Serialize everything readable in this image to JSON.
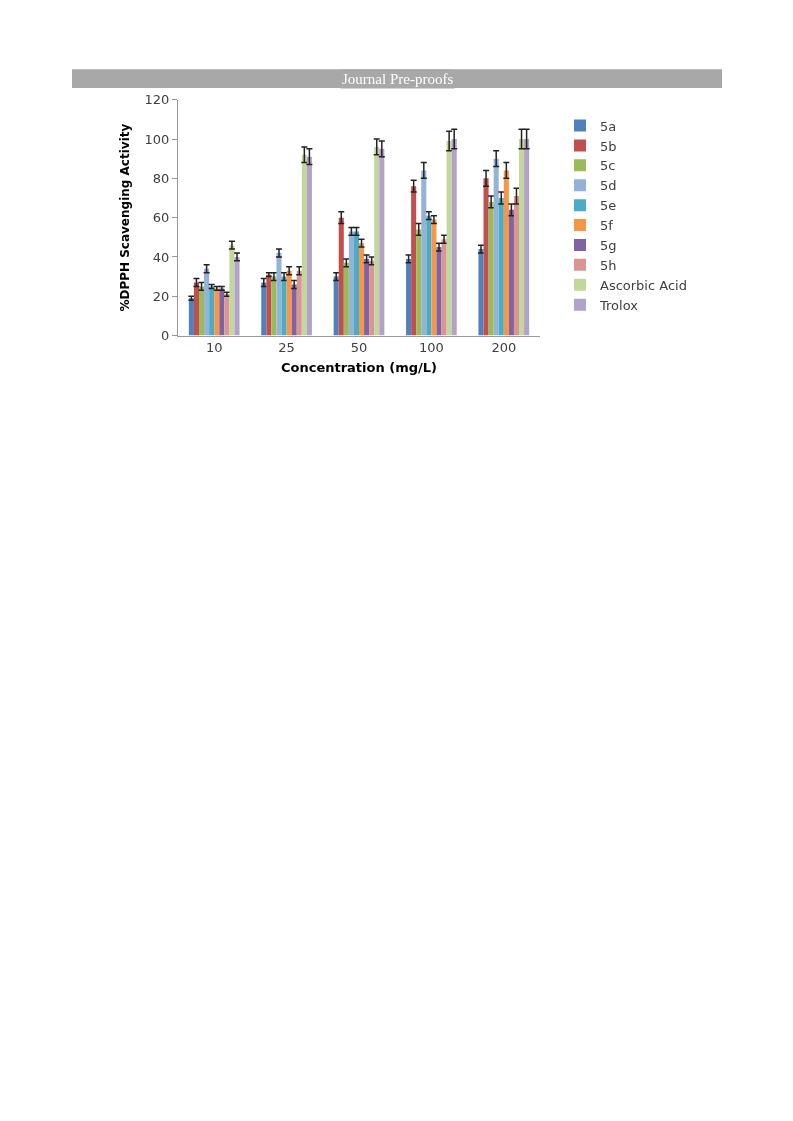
{
  "chart_data": {
    "type": "bar",
    "annotations": [
      "Journal Pre-proofs"
    ],
    "xlabel": "Concentration (mg/L)",
    "ylabel": "%DPPH Scavenging Activity",
    "categories": [
      "10",
      "25",
      "50",
      "100",
      "200"
    ],
    "ylim": [
      0,
      120
    ],
    "yticks": [
      0,
      20,
      40,
      60,
      80,
      100,
      120
    ],
    "legend": "right",
    "series": [
      {
        "name": "5a",
        "color": "#4f81bd",
        "values": [
          19,
          27,
          30,
          39,
          44
        ],
        "errors": [
          1,
          2,
          2,
          2,
          2
        ]
      },
      {
        "name": "5b",
        "color": "#c0504d",
        "values": [
          27,
          31,
          60,
          76,
          80
        ],
        "errors": [
          2,
          1,
          3,
          3,
          4
        ]
      },
      {
        "name": "5c",
        "color": "#9bbb59",
        "values": [
          25,
          30,
          37,
          54,
          68
        ],
        "errors": [
          2,
          2,
          2,
          3,
          3
        ]
      },
      {
        "name": "5d",
        "color": "#95b3d7",
        "values": [
          34,
          42,
          53,
          84,
          90
        ],
        "errors": [
          2,
          2,
          2,
          4,
          4
        ]
      },
      {
        "name": "5e",
        "color": "#4bacc6",
        "values": [
          25,
          30,
          53,
          61,
          70
        ],
        "errors": [
          1,
          2,
          2,
          2,
          3
        ]
      },
      {
        "name": "5f",
        "color": "#f79646",
        "values": [
          24,
          33,
          47,
          59,
          84
        ],
        "errors": [
          1,
          2,
          2,
          2,
          4
        ]
      },
      {
        "name": "5g",
        "color": "#8064a2",
        "values": [
          24,
          26,
          39,
          45,
          64
        ],
        "errors": [
          1,
          2,
          2,
          2,
          3
        ]
      },
      {
        "name": "5h",
        "color": "#d99694",
        "values": [
          21,
          33,
          38,
          49,
          71
        ],
        "errors": [
          1,
          2,
          2,
          2,
          4
        ]
      },
      {
        "name": "Ascorbic Acid",
        "color": "#c3d69b",
        "values": [
          46,
          92,
          96,
          99,
          100
        ],
        "errors": [
          2,
          4,
          4,
          5,
          5
        ]
      },
      {
        "name": "Trolox",
        "color": "#b3a2c7",
        "values": [
          40,
          91,
          95,
          100,
          100
        ],
        "errors": [
          2,
          4,
          4,
          5,
          5
        ]
      }
    ]
  }
}
